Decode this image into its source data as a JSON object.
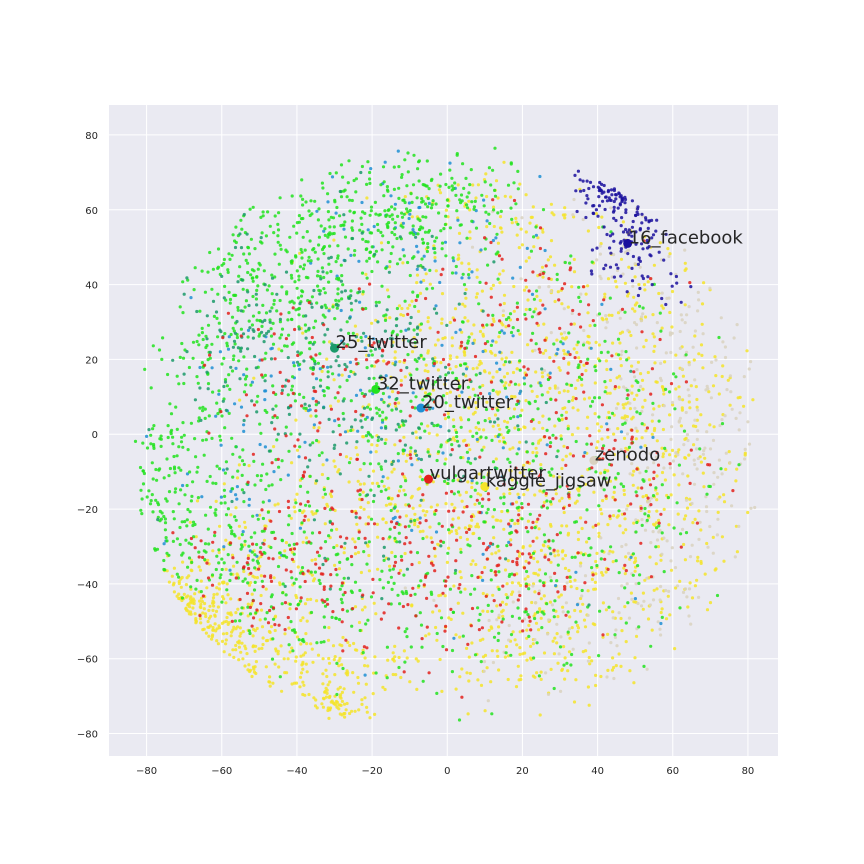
{
  "chart_data": {
    "type": "scatter",
    "title": "",
    "xlabel": "",
    "ylabel": "",
    "xlim": [
      -90,
      88
    ],
    "ylim": [
      -86,
      88
    ],
    "xticks": [
      -80,
      -60,
      -40,
      -20,
      0,
      20,
      40,
      60,
      80
    ],
    "yticks": [
      -80,
      -60,
      -40,
      -20,
      0,
      20,
      40,
      60,
      80
    ],
    "xtick_labels": [
      "−80",
      "−60",
      "−40",
      "−20",
      "0",
      "20",
      "40",
      "60",
      "80"
    ],
    "ytick_labels": [
      "−80",
      "−60",
      "−40",
      "−20",
      "0",
      "20",
      "40",
      "60",
      "80"
    ],
    "grid": true,
    "background": "#eaeaf2",
    "series": [
      {
        "name": "16_facebook",
        "color": "#1a0f9e",
        "centroid": [
          48,
          51
        ],
        "clusters": [
          [
            46,
            68,
            5,
            6,
            90
          ],
          [
            52,
            55,
            5,
            8,
            60
          ],
          [
            42,
            48,
            4,
            4,
            15
          ],
          [
            60,
            38,
            3,
            4,
            8
          ]
        ]
      },
      {
        "name": "25_twitter",
        "color": "#1b9a6a",
        "centroid": [
          -30,
          23
        ],
        "clusters": [
          [
            -50,
            25,
            14,
            12,
            80
          ],
          [
            -30,
            15,
            22,
            22,
            120
          ],
          [
            -10,
            0,
            20,
            22,
            100
          ]
        ]
      },
      {
        "name": "32_twitter",
        "color": "#22e31f",
        "centroid": [
          -19,
          12
        ],
        "clusters": [
          [
            -45,
            40,
            14,
            14,
            300
          ],
          [
            -20,
            55,
            12,
            10,
            200
          ],
          [
            0,
            62,
            10,
            8,
            120
          ],
          [
            -60,
            10,
            10,
            18,
            150
          ],
          [
            -75,
            -15,
            5,
            10,
            90
          ],
          [
            -55,
            -30,
            12,
            12,
            150
          ],
          [
            -20,
            0,
            20,
            18,
            200
          ],
          [
            10,
            -10,
            20,
            20,
            120
          ],
          [
            30,
            20,
            20,
            20,
            120
          ],
          [
            20,
            -40,
            20,
            15,
            120
          ],
          [
            50,
            -20,
            15,
            20,
            80
          ],
          [
            -30,
            -45,
            15,
            10,
            100
          ]
        ]
      },
      {
        "name": "20_twitter",
        "color": "#1f8fd4",
        "centroid": [
          -7,
          7
        ],
        "clusters": [
          [
            -10,
            55,
            14,
            10,
            60
          ],
          [
            -40,
            10,
            14,
            12,
            60
          ],
          [
            10,
            20,
            18,
            18,
            60
          ],
          [
            -55,
            -20,
            10,
            10,
            30
          ],
          [
            20,
            -20,
            25,
            25,
            40
          ]
        ]
      },
      {
        "name": "vulgartwitter",
        "color": "#e3211c",
        "centroid": [
          -5,
          -12
        ],
        "clusters": [
          [
            -40,
            15,
            12,
            12,
            60
          ],
          [
            -30,
            -30,
            14,
            14,
            100
          ],
          [
            10,
            -35,
            18,
            12,
            150
          ],
          [
            30,
            10,
            18,
            18,
            90
          ],
          [
            -55,
            -35,
            8,
            8,
            40
          ],
          [
            -10,
            25,
            14,
            12,
            40
          ],
          [
            45,
            -15,
            12,
            12,
            40
          ],
          [
            20,
            40,
            12,
            10,
            30
          ]
        ]
      },
      {
        "name": "kaggle_jigsaw",
        "color": "#f5e42a",
        "centroid": [
          10,
          -14
        ],
        "clusters": [
          [
            -70,
            -50,
            7,
            7,
            140
          ],
          [
            -50,
            -40,
            12,
            15,
            140
          ],
          [
            -30,
            -62,
            12,
            4,
            90
          ],
          [
            -30,
            -73,
            5,
            3,
            60
          ],
          [
            -55,
            -58,
            8,
            6,
            70
          ],
          [
            0,
            -20,
            18,
            18,
            220
          ],
          [
            30,
            -40,
            22,
            16,
            250
          ],
          [
            30,
            20,
            20,
            25,
            260
          ],
          [
            -5,
            30,
            14,
            10,
            120
          ],
          [
            10,
            60,
            12,
            6,
            60
          ],
          [
            55,
            0,
            14,
            30,
            300
          ],
          [
            20,
            -60,
            14,
            5,
            70
          ],
          [
            -25,
            -20,
            10,
            12,
            80
          ],
          [
            5,
            10,
            15,
            10,
            100
          ]
        ]
      },
      {
        "name": "zenodo",
        "color": "#d9d2c0",
        "centroid": [
          39,
          -7
        ],
        "clusters": [
          [
            65,
            10,
            10,
            18,
            120
          ],
          [
            60,
            -25,
            10,
            14,
            80
          ],
          [
            40,
            40,
            14,
            14,
            70
          ],
          [
            30,
            -50,
            14,
            10,
            60
          ]
        ]
      }
    ],
    "annotations": [
      {
        "text": "16_facebook",
        "x": 48,
        "y": 51
      },
      {
        "text": "25_twitter",
        "x": -30,
        "y": 23
      },
      {
        "text": "32_twitter",
        "x": -19,
        "y": 12
      },
      {
        "text": "20_twitter",
        "x": -7,
        "y": 7
      },
      {
        "text": "zenodo",
        "x": 39,
        "y": -7
      },
      {
        "text": "vulgartwitter",
        "x": -5,
        "y": -12
      },
      {
        "text": "kaggle_jigsaw",
        "x": 10,
        "y": -14
      }
    ]
  }
}
